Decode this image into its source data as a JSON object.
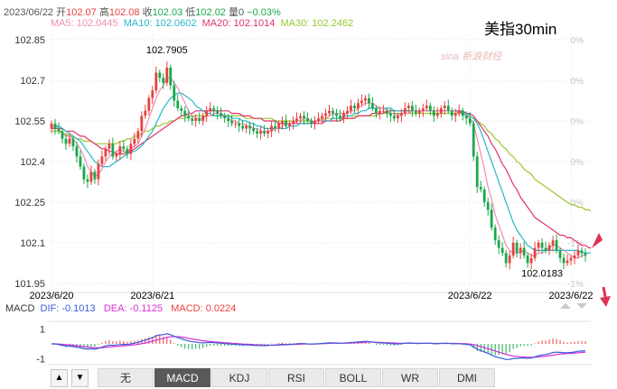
{
  "header": {
    "date": "2023/06/22",
    "open_label": "开",
    "open": "102.07",
    "high_label": "高",
    "high": "102.08",
    "close_label": "收",
    "close": "102.03",
    "low_label": "低",
    "low": "102.02",
    "volume_label": "量",
    "volume": "0",
    "change": "−0.03%"
  },
  "ma_legend": {
    "ma5": "MA5: 102.0445",
    "ma10": "MA10: 102.0602",
    "ma20": "MA20: 102.1014",
    "ma30": "MA30: 102.2462"
  },
  "symbol": "美指30min",
  "watermark": "sina 新浪财经",
  "macd_legend": {
    "title": "MACD",
    "dif": "DIF: -0.1013",
    "dea": "DEA: -0.1125",
    "macd": "MACD: 0.0224"
  },
  "tabs": [
    "无",
    "MACD",
    "KDJ",
    "RSI",
    "BOLL",
    "WR",
    "DMI"
  ],
  "active_tab": "MACD",
  "colors": {
    "up": "#e8413f",
    "down": "#19a84b",
    "ma5": "#f08cb4",
    "ma10": "#27b7c9",
    "ma20": "#e0336b",
    "ma30": "#9ac72e",
    "dif": "#3b5bd6",
    "dea": "#d52fd9"
  },
  "chart_data": {
    "type": "candlestick",
    "timeframe": "30min",
    "ylim": [
      101.92,
      102.88
    ],
    "y_ticks": [
      "102.85",
      "102.7",
      "102.55",
      "102.4",
      "102.25",
      "102.1",
      "101.95"
    ],
    "right_ticks": [
      "0%",
      "0%",
      "0%",
      "0%",
      "0%",
      "-1%",
      "-1%"
    ],
    "x_labels": [
      {
        "index": 0,
        "label": "2023/6/20"
      },
      {
        "index": 28,
        "label": "2023/6/21"
      },
      {
        "index": 116,
        "label": "2023/6/22"
      },
      {
        "index": 144,
        "label": "2023/6/22"
      }
    ],
    "annotations": [
      {
        "index": 32,
        "value": 102.7905,
        "label": "102.7905"
      },
      {
        "index": 136,
        "value": 102.0183,
        "label": "102.0183"
      }
    ],
    "closes": [
      102.55,
      102.53,
      102.52,
      102.49,
      102.47,
      102.49,
      102.46,
      102.42,
      102.38,
      102.33,
      102.32,
      102.36,
      102.33,
      102.39,
      102.42,
      102.45,
      102.47,
      102.42,
      102.43,
      102.46,
      102.45,
      102.43,
      102.47,
      102.49,
      102.52,
      102.58,
      102.6,
      102.65,
      102.68,
      102.75,
      102.73,
      102.71,
      102.77,
      102.7,
      102.64,
      102.61,
      102.6,
      102.58,
      102.57,
      102.56,
      102.57,
      102.56,
      102.58,
      102.6,
      102.61,
      102.6,
      102.59,
      102.58,
      102.57,
      102.56,
      102.55,
      102.55,
      102.54,
      102.53,
      102.54,
      102.53,
      102.52,
      102.51,
      102.52,
      102.51,
      102.52,
      102.54,
      102.53,
      102.55,
      102.56,
      102.54,
      102.55,
      102.56,
      102.57,
      102.58,
      102.57,
      102.56,
      102.55,
      102.56,
      102.57,
      102.58,
      102.59,
      102.6,
      102.59,
      102.58,
      102.57,
      102.59,
      102.6,
      102.62,
      102.61,
      102.63,
      102.64,
      102.65,
      102.63,
      102.61,
      102.59,
      102.6,
      102.6,
      102.59,
      102.58,
      102.57,
      102.58,
      102.59,
      102.61,
      102.62,
      102.6,
      102.59,
      102.6,
      102.61,
      102.62,
      102.6,
      102.58,
      102.59,
      102.61,
      102.62,
      102.6,
      102.58,
      102.59,
      102.6,
      102.58,
      102.57,
      102.55,
      102.42,
      102.3,
      102.29,
      102.24,
      102.21,
      102.14,
      102.09,
      102.06,
      102.04,
      102.0,
      102.03,
      102.08,
      102.04,
      102.06,
      102.03,
      102.0,
      102.02,
      102.06,
      102.08,
      102.06,
      102.05,
      102.07,
      102.09,
      102.05,
      102.02,
      102.0,
      102.01,
      102.02,
      102.03,
      102.05,
      102.04,
      102.03
    ],
    "ma5": [
      102.54,
      102.54,
      102.53,
      102.51,
      102.5,
      102.5,
      102.49,
      102.47,
      102.45,
      102.42,
      102.38,
      102.36,
      102.34,
      102.35,
      102.37,
      102.4,
      102.42,
      102.43,
      102.44,
      102.45,
      102.44,
      102.44,
      102.45,
      102.46,
      102.47,
      102.5,
      102.53,
      102.57,
      102.61,
      102.65,
      102.68,
      102.7,
      102.73,
      102.73,
      102.71,
      102.69,
      102.66,
      102.63,
      102.6,
      102.58,
      102.57,
      102.57,
      102.57,
      102.58,
      102.58,
      102.59,
      102.59,
      102.59,
      102.58,
      102.57,
      102.56,
      102.56,
      102.55,
      102.55,
      102.54,
      102.54,
      102.53,
      102.53,
      102.52,
      102.52,
      102.52,
      102.52,
      102.53,
      102.53,
      102.54,
      102.55,
      102.55,
      102.55,
      102.56,
      102.56,
      102.57,
      102.57,
      102.56,
      102.56,
      102.56,
      102.56,
      102.57,
      102.58,
      102.59,
      102.59,
      102.59,
      102.59,
      102.59,
      102.6,
      102.6,
      102.61,
      102.62,
      102.63,
      102.63,
      102.63,
      102.62,
      102.61,
      102.61,
      102.6,
      102.59,
      102.59,
      102.58,
      102.59,
      102.59,
      102.59,
      102.6,
      102.6,
      102.6,
      102.6,
      102.6,
      102.6,
      102.6,
      102.6,
      102.6,
      102.6,
      102.6,
      102.6,
      102.6,
      102.59,
      102.59,
      102.58,
      102.57,
      102.55,
      102.49,
      102.43,
      102.37,
      102.3,
      102.25,
      102.19,
      102.15,
      102.11,
      102.07,
      102.05,
      102.04,
      102.04,
      102.04,
      102.05,
      102.04,
      102.03,
      102.03,
      102.04,
      102.04,
      102.05,
      102.06,
      102.07,
      102.07,
      102.06,
      102.05,
      102.04,
      102.03,
      102.02,
      102.02,
      102.03,
      102.03
    ],
    "ma10": [
      102.54,
      102.54,
      102.54,
      102.53,
      102.52,
      102.51,
      102.5,
      102.49,
      102.48,
      102.46,
      102.44,
      102.42,
      102.4,
      102.39,
      102.38,
      102.38,
      102.38,
      102.39,
      102.4,
      102.41,
      102.42,
      102.43,
      102.44,
      102.44,
      102.45,
      102.46,
      102.48,
      102.5,
      102.52,
      102.55,
      102.58,
      102.61,
      102.63,
      102.65,
      102.66,
      102.67,
      102.67,
      102.66,
      102.65,
      102.64,
      102.62,
      102.61,
      102.6,
      102.59,
      102.59,
      102.58,
      102.58,
      102.58,
      102.58,
      102.58,
      102.57,
      102.57,
      102.57,
      102.56,
      102.56,
      102.55,
      102.55,
      102.54,
      102.54,
      102.53,
      102.53,
      102.53,
      102.53,
      102.53,
      102.53,
      102.53,
      102.54,
      102.54,
      102.54,
      102.55,
      102.55,
      102.55,
      102.55,
      102.56,
      102.56,
      102.56,
      102.56,
      102.56,
      102.57,
      102.57,
      102.57,
      102.58,
      102.58,
      102.58,
      102.59,
      102.59,
      102.6,
      102.6,
      102.61,
      102.61,
      102.61,
      102.61,
      102.61,
      102.61,
      102.61,
      102.6,
      102.6,
      102.6,
      102.6,
      102.6,
      102.6,
      102.6,
      102.6,
      102.6,
      102.6,
      102.6,
      102.6,
      102.6,
      102.6,
      102.6,
      102.6,
      102.6,
      102.6,
      102.6,
      102.59,
      102.59,
      102.58,
      102.57,
      102.55,
      102.52,
      102.48,
      102.44,
      102.4,
      102.36,
      102.32,
      102.28,
      102.24,
      102.2,
      102.16,
      102.13,
      102.11,
      102.09,
      102.07,
      102.06,
      102.05,
      102.05,
      102.05,
      102.05,
      102.05,
      102.05,
      102.05,
      102.05,
      102.05,
      102.05,
      102.05,
      102.05,
      102.05,
      102.04,
      102.04,
      102.04,
      102.04
    ],
    "ma20": [
      102.53,
      102.53,
      102.53,
      102.53,
      102.52,
      102.52,
      102.52,
      102.51,
      102.5,
      102.5,
      102.49,
      102.48,
      102.47,
      102.46,
      102.45,
      102.45,
      102.44,
      102.44,
      102.43,
      102.43,
      102.43,
      102.44,
      102.44,
      102.45,
      102.46,
      102.47,
      102.48,
      102.49,
      102.5,
      102.51,
      102.52,
      102.53,
      102.54,
      102.55,
      102.56,
      102.57,
      102.58,
      102.58,
      102.59,
      102.59,
      102.6,
      102.6,
      102.6,
      102.6,
      102.6,
      102.6,
      102.6,
      102.6,
      102.6,
      102.6,
      102.59,
      102.59,
      102.59,
      102.58,
      102.58,
      102.58,
      102.57,
      102.57,
      102.57,
      102.56,
      102.56,
      102.56,
      102.56,
      102.55,
      102.55,
      102.55,
      102.55,
      102.55,
      102.55,
      102.55,
      102.55,
      102.55,
      102.55,
      102.55,
      102.55,
      102.55,
      102.56,
      102.56,
      102.56,
      102.56,
      102.56,
      102.57,
      102.57,
      102.57,
      102.57,
      102.58,
      102.58,
      102.58,
      102.58,
      102.59,
      102.59,
      102.59,
      102.59,
      102.6,
      102.6,
      102.6,
      102.6,
      102.6,
      102.6,
      102.6,
      102.6,
      102.6,
      102.6,
      102.6,
      102.6,
      102.6,
      102.6,
      102.6,
      102.6,
      102.6,
      102.6,
      102.6,
      102.6,
      102.6,
      102.6,
      102.59,
      102.59,
      102.58,
      102.56,
      102.54,
      102.52,
      102.5,
      102.47,
      102.45,
      102.42,
      102.39,
      102.37,
      102.34,
      102.31,
      102.29,
      102.26,
      102.24,
      102.22,
      102.2,
      102.18,
      102.17,
      102.16,
      102.15,
      102.14,
      102.13,
      102.12,
      102.11,
      102.11,
      102.1,
      102.1,
      102.09,
      102.08,
      102.07,
      102.07,
      102.06,
      102.06
    ],
    "ma30": [
      102.52,
      102.52,
      102.52,
      102.51,
      102.51,
      102.5,
      102.5,
      102.49,
      102.49,
      102.48,
      102.48,
      102.48,
      102.47,
      102.47,
      102.47,
      102.47,
      102.47,
      102.47,
      102.47,
      102.48,
      102.48,
      102.49,
      102.49,
      102.5,
      102.5,
      102.51,
      102.52,
      102.52,
      102.53,
      102.54,
      102.54,
      102.55,
      102.55,
      102.56,
      102.56,
      102.57,
      102.57,
      102.57,
      102.58,
      102.58,
      102.58,
      102.58,
      102.58,
      102.58,
      102.58,
      102.58,
      102.58,
      102.58,
      102.58,
      102.58,
      102.58,
      102.58,
      102.58,
      102.58,
      102.57,
      102.57,
      102.57,
      102.57,
      102.57,
      102.57,
      102.57,
      102.57,
      102.56,
      102.56,
      102.56,
      102.56,
      102.56,
      102.56,
      102.56,
      102.56,
      102.56,
      102.56,
      102.56,
      102.56,
      102.56,
      102.57,
      102.57,
      102.57,
      102.57,
      102.57,
      102.57,
      102.57,
      102.57,
      102.57,
      102.58,
      102.58,
      102.58,
      102.58,
      102.58,
      102.58,
      102.58,
      102.59,
      102.59,
      102.59,
      102.59,
      102.59,
      102.59,
      102.59,
      102.59,
      102.59,
      102.59,
      102.59,
      102.59,
      102.59,
      102.59,
      102.59,
      102.59,
      102.59,
      102.59,
      102.59,
      102.59,
      102.59,
      102.59,
      102.59,
      102.59,
      102.58,
      102.58,
      102.57,
      102.56,
      102.55,
      102.54,
      102.52,
      102.51,
      102.49,
      102.48,
      102.46,
      102.45,
      102.43,
      102.42,
      102.4,
      102.39,
      102.37,
      102.36,
      102.35,
      102.33,
      102.32,
      102.31,
      102.3,
      102.29,
      102.28,
      102.27,
      102.26,
      102.25,
      102.24,
      102.23,
      102.23,
      102.22,
      102.22,
      102.21,
      102.21,
      102.2
    ],
    "macd_ylim": [
      -1.4,
      1.4
    ],
    "macd_ticks": [
      "1",
      "-1"
    ],
    "dif": [
      0.0,
      0.0,
      -0.05,
      -0.1,
      -0.15,
      -0.15,
      -0.18,
      -0.22,
      -0.27,
      -0.32,
      -0.36,
      -0.33,
      -0.36,
      -0.3,
      -0.22,
      -0.14,
      -0.08,
      -0.1,
      -0.08,
      -0.04,
      -0.03,
      -0.04,
      0.0,
      0.05,
      0.1,
      0.18,
      0.25,
      0.34,
      0.42,
      0.55,
      0.6,
      0.62,
      0.68,
      0.62,
      0.52,
      0.42,
      0.35,
      0.26,
      0.2,
      0.14,
      0.12,
      0.08,
      0.07,
      0.08,
      0.1,
      0.08,
      0.06,
      0.04,
      0.02,
      0.0,
      -0.02,
      -0.03,
      -0.05,
      -0.07,
      -0.07,
      -0.08,
      -0.1,
      -0.11,
      -0.11,
      -0.12,
      -0.11,
      -0.08,
      -0.08,
      -0.05,
      -0.03,
      -0.04,
      -0.03,
      -0.02,
      0.0,
      0.02,
      0.02,
      0.0,
      -0.01,
      0.0,
      0.01,
      0.03,
      0.05,
      0.07,
      0.07,
      0.06,
      0.04,
      0.05,
      0.07,
      0.1,
      0.1,
      0.13,
      0.15,
      0.17,
      0.15,
      0.12,
      0.08,
      0.07,
      0.06,
      0.04,
      0.02,
      0.0,
      0.0,
      0.01,
      0.04,
      0.06,
      0.05,
      0.03,
      0.03,
      0.04,
      0.05,
      0.04,
      0.01,
      0.01,
      0.03,
      0.05,
      0.04,
      0.01,
      0.01,
      0.01,
      -0.01,
      -0.03,
      -0.06,
      -0.2,
      -0.35,
      -0.45,
      -0.55,
      -0.63,
      -0.75,
      -0.85,
      -0.93,
      -0.98,
      -1.05,
      -1.05,
      -0.98,
      -0.98,
      -0.95,
      -0.95,
      -0.97,
      -0.95,
      -0.88,
      -0.8,
      -0.75,
      -0.72,
      -0.66,
      -0.58,
      -0.56,
      -0.57,
      -0.6,
      -0.6,
      -0.58,
      -0.55,
      -0.5,
      -0.48,
      -0.47
    ],
    "dea": [
      0.0,
      0.0,
      -0.01,
      -0.03,
      -0.05,
      -0.07,
      -0.09,
      -0.12,
      -0.15,
      -0.18,
      -0.21,
      -0.24,
      -0.26,
      -0.27,
      -0.26,
      -0.24,
      -0.21,
      -0.19,
      -0.17,
      -0.15,
      -0.13,
      -0.11,
      -0.09,
      -0.06,
      -0.03,
      0.01,
      0.06,
      0.12,
      0.18,
      0.25,
      0.32,
      0.38,
      0.44,
      0.48,
      0.49,
      0.48,
      0.46,
      0.42,
      0.38,
      0.33,
      0.29,
      0.25,
      0.21,
      0.18,
      0.16,
      0.14,
      0.12,
      0.1,
      0.08,
      0.06,
      0.04,
      0.03,
      0.01,
      -0.01,
      -0.02,
      -0.03,
      -0.05,
      -0.06,
      -0.07,
      -0.08,
      -0.09,
      -0.09,
      -0.09,
      -0.08,
      -0.07,
      -0.06,
      -0.05,
      -0.04,
      -0.03,
      -0.02,
      -0.01,
      -0.01,
      -0.01,
      -0.01,
      0.0,
      0.01,
      0.02,
      0.03,
      0.04,
      0.04,
      0.04,
      0.04,
      0.05,
      0.06,
      0.07,
      0.08,
      0.09,
      0.11,
      0.12,
      0.12,
      0.11,
      0.1,
      0.09,
      0.08,
      0.07,
      0.06,
      0.05,
      0.04,
      0.04,
      0.04,
      0.04,
      0.04,
      0.04,
      0.04,
      0.04,
      0.04,
      0.03,
      0.03,
      0.03,
      0.03,
      0.03,
      0.03,
      0.03,
      0.02,
      0.02,
      0.01,
      -0.01,
      -0.05,
      -0.11,
      -0.18,
      -0.25,
      -0.32,
      -0.4,
      -0.48,
      -0.56,
      -0.63,
      -0.71,
      -0.77,
      -0.81,
      -0.84,
      -0.87,
      -0.88,
      -0.9,
      -0.9,
      -0.9,
      -0.88,
      -0.86,
      -0.83,
      -0.8,
      -0.76,
      -0.72,
      -0.69,
      -0.67,
      -0.65,
      -0.64,
      -0.62,
      -0.6,
      -0.58,
      -0.56
    ]
  }
}
